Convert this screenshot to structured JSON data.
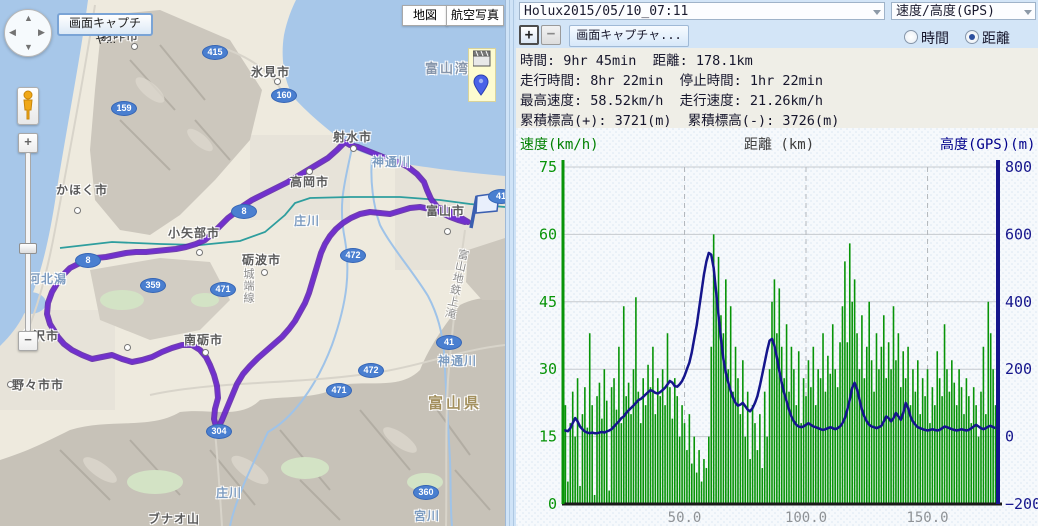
{
  "map": {
    "controls": {
      "capture_button": "画面キャプチャ...",
      "map_type_button": "地図",
      "satellite_button": "航空写真",
      "zoom_in": "+",
      "zoom_out": "−"
    },
    "labels": [
      "羽咋市",
      "氷見市",
      "かほく市",
      "高岡市",
      "小矢部市",
      "砺波市",
      "射水市",
      "富山市",
      "南砺市",
      "金沢市",
      "野々市市",
      "富山県",
      "富山湾",
      "神通川",
      "神通川",
      "庄川",
      "庄川",
      "河北潟",
      "宮川",
      "ブナオ山",
      "城端線",
      "富山地鉄上滝"
    ],
    "badges": [
      "415",
      "160",
      "159",
      "8",
      "8",
      "359",
      "471",
      "472",
      "472",
      "471",
      "41",
      "41",
      "360",
      "304"
    ],
    "track_color": "#7130cf",
    "track_points": "468,222 458,216 448,210 438,208 431,199 427,190 424,182 417,174 408,167 398,162 388,159 378,155 368,151 358,147 350,145 345,142 337,150 328,158 318,164 308,170 298,176 288,182 276,188 264,194 252,200 243,206 236,212 228,218 220,226 212,234 205,240 196,244 186,247 176,249 166,250 156,251 146,252 136,252 126,253 116,255 106,257 96,258 88,260 78,264 70,268 64,274 58,282 52,292 48,303 47,314 50,324 55,332 58,337 64,344 72,350 82,355 92,359 102,357 112,355 122,359 132,362 142,360 152,357 162,352 172,348 182,345 192,345 200,350 206,357 210,365 214,375 217,386 218,398 215,409 214,419 217,430 222,420 227,408 232,396 237,384 243,374 250,366 258,358 266,351 274,344 282,337 289,329 295,321 300,312 305,303 309,293 312,283 315,273 318,263 321,253 325,244 330,236 336,229 343,223 351,218 360,214 370,212 380,213 390,214 400,211 410,208 420,207 430,209 440,212 450,217 458,220 465,222"
  },
  "panel": {
    "track_select": "Holux2015/05/10_07:11",
    "view_select": "速度/高度(GPS)",
    "zoom_in": "+",
    "zoom_out": "−",
    "capture_button": "画面キャプチャ...",
    "radio_time": "時間",
    "radio_distance": "距離",
    "radio_selected": "距離",
    "stats_lines": [
      "時間: 9hr 45min  距離: 178.1km",
      "走行時間: 8hr 22min  停止時間: 1hr 22min",
      "最高速度: 58.52km/h  走行速度: 21.26km/h",
      "累積標高(+): 3721(m)  累積標高(-): 3726(m)"
    ]
  },
  "chart_data": {
    "type": "bar",
    "xlabel": "距離 (km)",
    "ylabel_left": "速度(km/h)",
    "ylabel_right": "高度(GPS)(m)",
    "xlim": [
      0,
      179
    ],
    "ylim_left": [
      0,
      75
    ],
    "ylim_right": [
      -200,
      800
    ],
    "yticks_left": [
      0,
      15,
      30,
      45,
      60,
      75
    ],
    "yticks_right": [
      -200,
      0,
      200,
      400,
      600,
      800
    ],
    "xticks": [
      50.0,
      100.0,
      150.0
    ],
    "grid": true,
    "x_start": 0,
    "x_step": 1,
    "colors": {
      "grid": "#c6cacf",
      "grid_dash": "#b4b8bd",
      "axis_bottom": "#1a1a1a",
      "tick_text": "#8e9296"
    },
    "series": [
      {
        "name": "速度",
        "type": "bar",
        "axis": "left",
        "color": "#089408",
        "values": [
          8,
          22,
          5,
          18,
          25,
          15,
          28,
          4,
          20,
          26,
          17,
          38,
          22,
          2,
          24,
          27,
          19,
          30,
          23,
          3,
          26,
          28,
          21,
          35,
          18,
          44,
          24,
          27,
          20,
          30,
          46,
          25,
          18,
          28,
          22,
          31,
          26,
          35,
          20,
          28,
          24,
          30,
          22,
          38,
          26,
          19,
          28,
          24,
          15,
          22,
          18,
          12,
          20,
          9,
          15,
          7,
          12,
          5,
          10,
          8,
          15,
          35,
          60,
          48,
          55,
          42,
          38,
          50,
          30,
          44,
          25,
          35,
          28,
          20,
          32,
          15,
          25,
          10,
          22,
          18,
          12,
          20,
          8,
          25,
          15,
          30,
          45,
          50,
          38,
          48,
          35,
          28,
          40,
          25,
          35,
          30,
          22,
          34,
          18,
          28,
          24,
          32,
          26,
          35,
          22,
          30,
          28,
          38,
          25,
          33,
          29,
          40,
          30,
          26,
          36,
          44,
          54,
          36,
          58,
          45,
          50,
          38,
          30,
          42,
          28,
          35,
          45,
          32,
          25,
          38,
          30,
          35,
          42,
          28,
          36,
          30,
          44,
          32,
          38,
          26,
          34,
          28,
          35,
          22,
          30,
          25,
          32,
          20,
          28,
          24,
          30,
          18,
          26,
          22,
          34,
          28,
          24,
          40,
          30,
          25,
          32,
          27,
          22,
          30,
          26,
          20,
          28,
          24,
          18,
          26,
          22,
          15,
          25,
          35,
          20,
          45,
          38,
          30,
          22
        ]
      },
      {
        "name": "高度(GPS)",
        "type": "line",
        "axis": "right",
        "color": "#15158c",
        "values": [
          20,
          18,
          16,
          25,
          40,
          55,
          45,
          30,
          22,
          15,
          12,
          10,
          12,
          10,
          10,
          12,
          14,
          12,
          15,
          18,
          22,
          30,
          38,
          45,
          55,
          60,
          70,
          78,
          85,
          92,
          100,
          108,
          112,
          118,
          125,
          132,
          138,
          135,
          130,
          128,
          132,
          138,
          145,
          155,
          165,
          160,
          150,
          148,
          155,
          165,
          180,
          200,
          220,
          250,
          290,
          330,
          380,
          430,
          480,
          520,
          545,
          540,
          500,
          430,
          360,
          290,
          230,
          190,
          160,
          135,
          115,
          100,
          92,
          95,
          100,
          90,
          80,
          75,
          85,
          100,
          120,
          150,
          185,
          220,
          255,
          285,
          290,
          270,
          235,
          195,
          160,
          130,
          105,
          80,
          60,
          45,
          35,
          30,
          28,
          30,
          35,
          40,
          35,
          30,
          28,
          25,
          22,
          20,
          22,
          25,
          28,
          25,
          22,
          25,
          30,
          40,
          55,
          80,
          110,
          145,
          160,
          140,
          110,
          80,
          60,
          45,
          35,
          30,
          28,
          25,
          28,
          32,
          45,
          60,
          55,
          45,
          55,
          70,
          60,
          50,
          70,
          100,
          85,
          60,
          45,
          35,
          28,
          25,
          22,
          20,
          18,
          20,
          22,
          20,
          18,
          20,
          25,
          30,
          28,
          25,
          22,
          20,
          18,
          20,
          22,
          20,
          18,
          20,
          25,
          30,
          35,
          30,
          25,
          22,
          25,
          30,
          32,
          28,
          25
        ]
      }
    ]
  }
}
